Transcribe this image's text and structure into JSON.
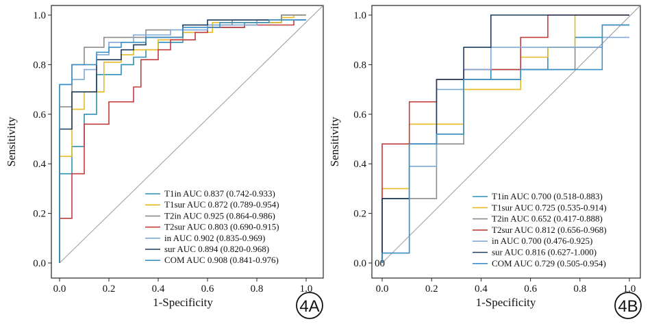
{
  "colors": {
    "T1in": "#2c8fb8",
    "T1sur": "#e8b923",
    "T2in": "#8c8c8c",
    "T2sur": "#c23b3b",
    "in": "#7fa7d9",
    "sur": "#1c3a5e",
    "COM": "#3b8fc4"
  },
  "chart_data": [
    {
      "type": "line",
      "badge": "4A",
      "xlabel": "1-Specificity",
      "ylabel": "Sensitivity",
      "xlim": [
        0,
        1
      ],
      "ylim": [
        0,
        1
      ],
      "xticks": [
        "0.0",
        "0.2",
        "0.4",
        "0.6",
        "0.8",
        "1.0"
      ],
      "yticks": [
        "0.0",
        "0.2",
        "0.4",
        "0.6",
        "0.8",
        "1.0"
      ],
      "grid": false,
      "reference_diagonal": true,
      "legend_position": "bottom-right",
      "series": [
        {
          "name": "T1in AUC 0.837 (0.742-0.933)",
          "color_key": "T1in",
          "x": [
            0,
            0,
            0.05,
            0.05,
            0.1,
            0.1,
            0.15,
            0.15,
            0.25,
            0.25,
            0.3,
            0.3,
            0.35,
            0.35,
            0.4,
            0.4,
            0.5,
            0.5,
            0.6,
            0.6,
            0.75,
            0.75,
            0.9,
            0.9,
            1.0,
            1.0
          ],
          "y": [
            0,
            0.36,
            0.36,
            0.47,
            0.47,
            0.6,
            0.6,
            0.76,
            0.76,
            0.8,
            0.8,
            0.83,
            0.83,
            0.86,
            0.86,
            0.89,
            0.89,
            0.93,
            0.93,
            0.95,
            0.95,
            0.97,
            0.97,
            1.0,
            1.0,
            1.0
          ]
        },
        {
          "name": "T1sur AUC 0.872 (0.789-0.954)",
          "color_key": "T1sur",
          "x": [
            0,
            0,
            0.05,
            0.05,
            0.1,
            0.1,
            0.18,
            0.18,
            0.25,
            0.25,
            0.3,
            0.3,
            0.4,
            0.4,
            0.5,
            0.5,
            0.62,
            0.62,
            0.9,
            0.9,
            0.95,
            0.95,
            1.0
          ],
          "y": [
            0,
            0.43,
            0.43,
            0.62,
            0.62,
            0.69,
            0.69,
            0.81,
            0.81,
            0.84,
            0.84,
            0.86,
            0.86,
            0.9,
            0.9,
            0.93,
            0.93,
            0.97,
            0.97,
            0.99,
            0.99,
            1.0,
            1.0
          ]
        },
        {
          "name": "T2in AUC 0.925 (0.864-0.986)",
          "color_key": "T2in",
          "x": [
            0,
            0,
            0.05,
            0.05,
            0.1,
            0.1,
            0.18,
            0.18,
            0.35,
            0.35,
            0.5,
            0.5,
            0.7,
            0.7,
            0.9,
            0.9,
            1.0
          ],
          "y": [
            0,
            0.63,
            0.63,
            0.8,
            0.8,
            0.87,
            0.87,
            0.91,
            0.91,
            0.94,
            0.94,
            0.96,
            0.96,
            0.98,
            0.98,
            1.0,
            1.0
          ]
        },
        {
          "name": "T2sur AUC 0.803 (0.690-0.915)",
          "color_key": "T2sur",
          "x": [
            0,
            0,
            0.05,
            0.05,
            0.1,
            0.1,
            0.2,
            0.2,
            0.3,
            0.3,
            0.33,
            0.33,
            0.4,
            0.4,
            0.45,
            0.45,
            0.55,
            0.55,
            0.6,
            0.6,
            0.75,
            0.75,
            0.95,
            0.95,
            1.0
          ],
          "y": [
            0,
            0.18,
            0.18,
            0.36,
            0.36,
            0.56,
            0.56,
            0.65,
            0.65,
            0.71,
            0.71,
            0.82,
            0.82,
            0.86,
            0.86,
            0.9,
            0.9,
            0.93,
            0.93,
            0.95,
            0.95,
            0.96,
            0.96,
            0.98,
            0.98
          ]
        },
        {
          "name": "in AUC 0.902 (0.835-0.969)",
          "color_key": "in",
          "x": [
            0,
            0,
            0.05,
            0.05,
            0.1,
            0.1,
            0.15,
            0.15,
            0.2,
            0.2,
            0.3,
            0.3,
            0.45,
            0.45,
            0.6,
            0.6,
            0.8,
            0.8,
            1.0
          ],
          "y": [
            0,
            0.72,
            0.72,
            0.74,
            0.74,
            0.78,
            0.78,
            0.84,
            0.84,
            0.89,
            0.89,
            0.92,
            0.92,
            0.94,
            0.94,
            0.96,
            0.96,
            0.98,
            0.98
          ]
        },
        {
          "name": "sur AUC 0.894 (0.820-0.968)",
          "color_key": "sur",
          "x": [
            0,
            0,
            0.05,
            0.05,
            0.15,
            0.15,
            0.25,
            0.25,
            0.3,
            0.3,
            0.35,
            0.35,
            0.5,
            0.5,
            0.6,
            0.6,
            1.0,
            1.0
          ],
          "y": [
            0,
            0.54,
            0.54,
            0.69,
            0.69,
            0.82,
            0.82,
            0.86,
            0.86,
            0.88,
            0.88,
            0.91,
            0.91,
            0.96,
            0.96,
            0.98,
            0.98,
            0.98
          ]
        },
        {
          "name": "COM AUC 0.908 (0.841-0.976)",
          "color_key": "COM",
          "x": [
            0,
            0,
            0.05,
            0.05,
            0.15,
            0.15,
            0.2,
            0.2,
            0.25,
            0.25,
            0.35,
            0.35,
            0.5,
            0.5,
            0.65,
            0.65,
            0.85,
            0.85,
            1.0
          ],
          "y": [
            0,
            0.72,
            0.72,
            0.8,
            0.8,
            0.85,
            0.85,
            0.87,
            0.87,
            0.89,
            0.89,
            0.91,
            0.91,
            0.95,
            0.95,
            0.97,
            0.97,
            0.98,
            0.98
          ]
        }
      ]
    },
    {
      "type": "line",
      "badge": "4B",
      "xlabel": "1-Specificity",
      "ylabel": "Sensitivity",
      "xlim": [
        0,
        1
      ],
      "ylim": [
        0,
        1
      ],
      "xticks": [
        "0.0",
        "0.2",
        "0.4",
        "0.6",
        "0.8",
        "1.0"
      ],
      "yticks": [
        "0.0",
        "0.2",
        "0.4",
        "0.6",
        "0.8",
        "1.0"
      ],
      "ytick_zero_label": "00",
      "grid": false,
      "reference_diagonal": true,
      "legend_position": "bottom-right",
      "series": [
        {
          "name": "T1in AUC 0.700 (0.518-0.883)",
          "color_key": "T1in",
          "x": [
            0,
            0,
            0.11,
            0.11,
            0.22,
            0.22,
            0.33,
            0.33,
            0.44,
            0.44,
            0.67,
            0.67,
            0.78,
            0.78,
            0.89,
            0.89,
            1.0
          ],
          "y": [
            0,
            0.26,
            0.26,
            0.48,
            0.48,
            0.52,
            0.52,
            0.74,
            0.74,
            0.78,
            0.78,
            0.87,
            0.87,
            0.91,
            0.91,
            0.96,
            0.96
          ]
        },
        {
          "name": "T1sur AUC 0.725 (0.535-0.914)",
          "color_key": "T1sur",
          "x": [
            0,
            0,
            0.11,
            0.11,
            0.33,
            0.33,
            0.56,
            0.56,
            0.67,
            0.67,
            0.78,
            0.78,
            1.0
          ],
          "y": [
            0,
            0.3,
            0.3,
            0.56,
            0.56,
            0.7,
            0.7,
            0.83,
            0.83,
            0.87,
            0.87,
            1.0,
            1.0
          ]
        },
        {
          "name": "T2in AUC 0.652 (0.417-0.888)",
          "color_key": "T2in",
          "x": [
            0,
            0,
            0.11,
            0.11,
            0.22,
            0.22,
            0.33,
            0.33,
            0.56,
            0.56,
            0.78,
            0.78,
            0.89,
            0.89,
            1.0
          ],
          "y": [
            0,
            0.26,
            0.26,
            0.26,
            0.26,
            0.48,
            0.48,
            0.74,
            0.74,
            0.78,
            0.78,
            0.87,
            0.87,
            0.96,
            0.96
          ]
        },
        {
          "name": "T2sur AUC 0.812 (0.656-0.968)",
          "color_key": "T2sur",
          "x": [
            0,
            0,
            0.11,
            0.11,
            0.22,
            0.22,
            0.33,
            0.33,
            0.44,
            0.44,
            0.56,
            0.56,
            0.67,
            0.67,
            1.0
          ],
          "y": [
            0,
            0.48,
            0.48,
            0.65,
            0.65,
            0.74,
            0.74,
            0.78,
            0.78,
            0.78,
            0.78,
            0.91,
            0.91,
            1.0,
            1.0
          ]
        },
        {
          "name": "in AUC 0.700 (0.476-0.925)",
          "color_key": "in",
          "x": [
            0,
            0,
            0.11,
            0.11,
            0.22,
            0.22,
            0.33,
            0.33,
            0.44,
            0.44,
            0.67,
            0.67,
            0.89,
            0.89,
            1.0
          ],
          "y": [
            0,
            0.04,
            0.04,
            0.39,
            0.39,
            0.7,
            0.7,
            0.78,
            0.78,
            0.87,
            0.87,
            0.87,
            0.87,
            0.91,
            0.91
          ]
        },
        {
          "name": "sur AUC 0.816 (0.627-1.000)",
          "color_key": "sur",
          "x": [
            0,
            0,
            0.11,
            0.11,
            0.22,
            0.22,
            0.33,
            0.33,
            0.44,
            0.44,
            1.0
          ],
          "y": [
            0,
            0.26,
            0.26,
            0.48,
            0.48,
            0.74,
            0.74,
            0.87,
            0.87,
            1.0,
            1.0
          ]
        },
        {
          "name": "COM AUC 0.729 (0.505-0.954)",
          "color_key": "COM",
          "x": [
            0,
            0,
            0.11,
            0.11,
            0.22,
            0.22,
            0.33,
            0.33,
            0.56,
            0.56,
            0.78,
            0.78,
            0.89,
            0.89,
            1.0
          ],
          "y": [
            0,
            0.04,
            0.04,
            0.48,
            0.48,
            0.52,
            0.52,
            0.74,
            0.74,
            0.78,
            0.78,
            0.78,
            0.78,
            0.96,
            0.96
          ]
        }
      ]
    }
  ]
}
